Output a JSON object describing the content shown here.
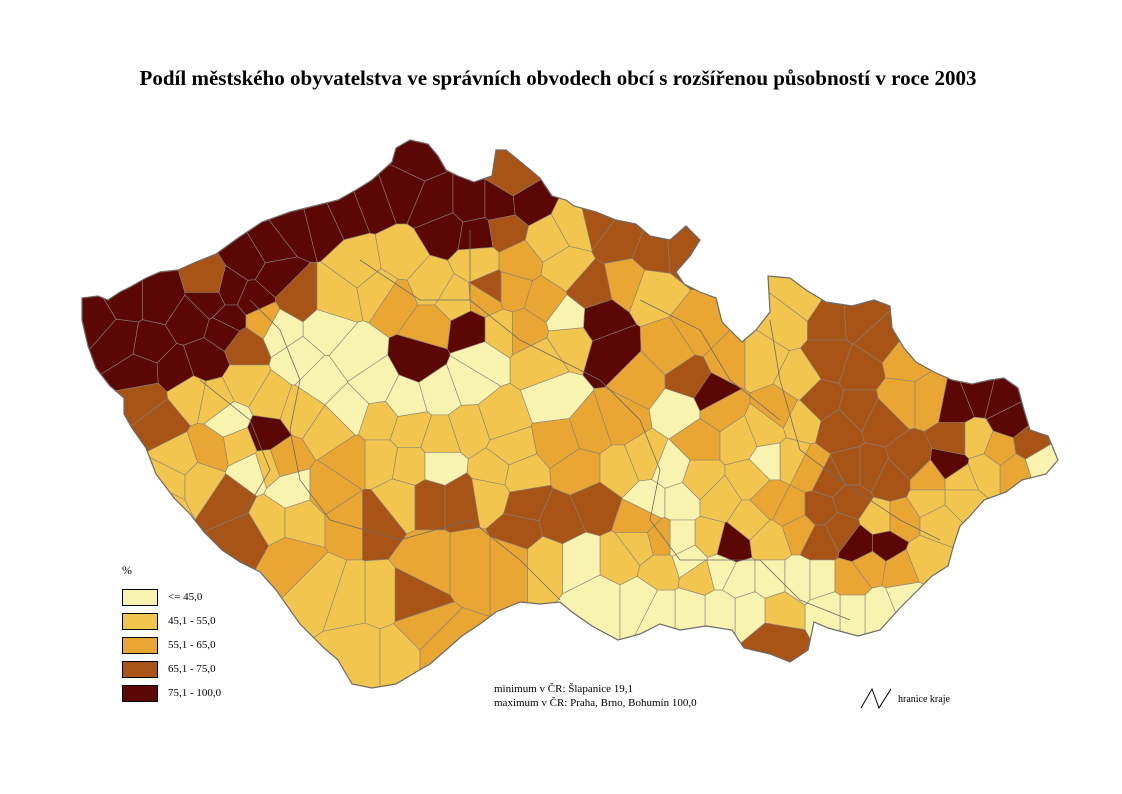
{
  "title": "Podíl městského obyvatelstva  ve správních obvodech obcí s rozšířenou působností v roce 2003",
  "legend": {
    "unit": "%",
    "classes": [
      {
        "label": "<=  45,0",
        "color": "#f8f4b0"
      },
      {
        "label": "45,1 - 55,0",
        "color": "#f2c64e"
      },
      {
        "label": "55,1 - 65,0",
        "color": "#e9a633"
      },
      {
        "label": "65,1 - 75,0",
        "color": "#a85416"
      },
      {
        "label": "75,1 - 100,0",
        "color": "#5a0706"
      }
    ]
  },
  "notes": {
    "minimum": "minimum v ČR: Šlapanice 19,1",
    "maximum": "maximum v ČR: Praha, Brno, Bohumín 100,0"
  },
  "border_key": {
    "label": "hranice kraje"
  }
}
